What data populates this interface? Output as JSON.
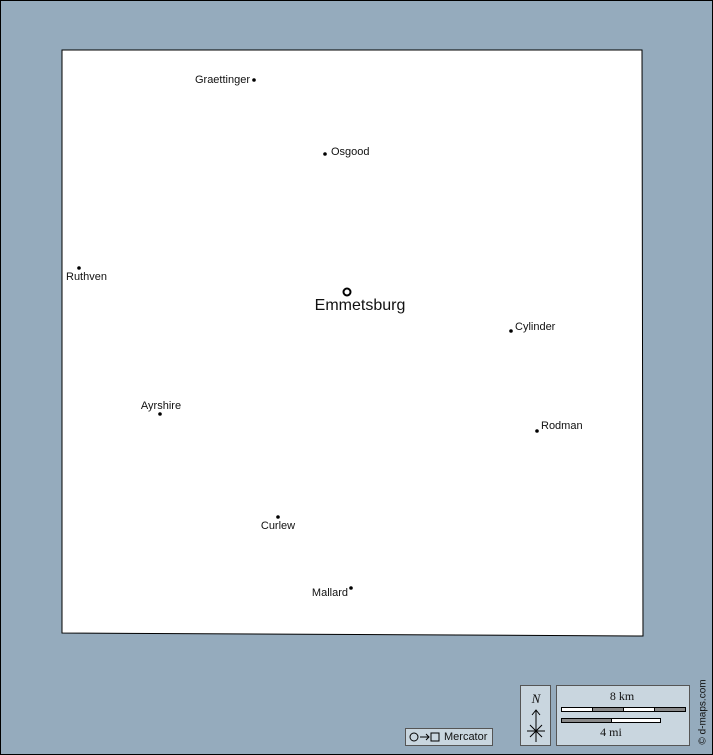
{
  "map": {
    "capital": "Emmetsburg",
    "towns": [
      "Graettinger",
      "Osgood",
      "Ruthven",
      "Cylinder",
      "Ayrshire",
      "Rodman",
      "Curlew",
      "Mallard"
    ]
  },
  "legend": {
    "projection": "Mercator",
    "north": "N",
    "scale_km": "8 km",
    "scale_mi": "4 mi"
  },
  "credit": "© d-maps.com"
}
